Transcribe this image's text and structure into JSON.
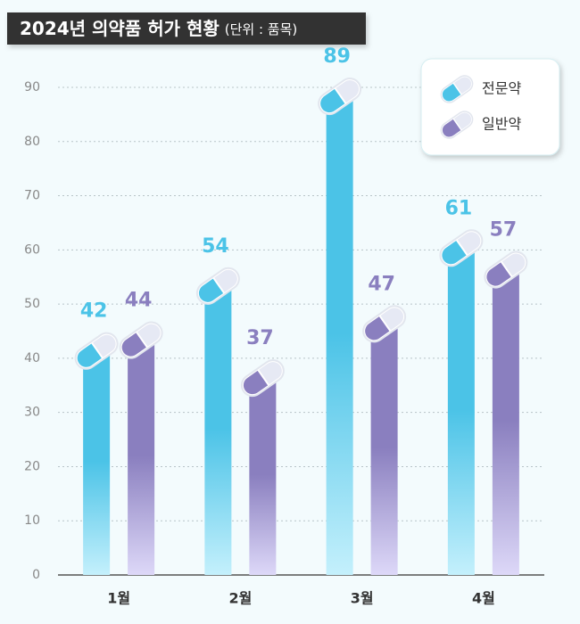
{
  "chart_data": {
    "type": "bar",
    "title": "2024년 의약품 허가 현황",
    "subtitle": "(단위 : 품목)",
    "categories": [
      "1월",
      "2월",
      "3월",
      "4월"
    ],
    "series": [
      {
        "name": "전문약",
        "color": "#4bc3e7",
        "values": [
          42,
          54,
          89,
          61
        ]
      },
      {
        "name": "일반약",
        "color": "#8a7fbf",
        "values": [
          44,
          37,
          47,
          57
        ]
      }
    ],
    "ylim": [
      0,
      90
    ],
    "yticks": [
      0,
      10,
      20,
      30,
      40,
      50,
      60,
      70,
      80,
      90
    ],
    "grid": true,
    "legend": "upper right"
  }
}
